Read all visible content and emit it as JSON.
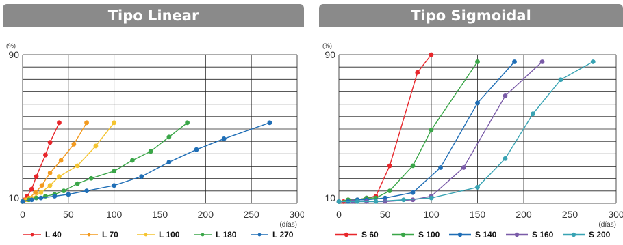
{
  "chart_data": [
    {
      "type": "line",
      "title": "Tipo Linear",
      "ylabel": "(%)",
      "xlabel": "(días)",
      "xlim": [
        0,
        300
      ],
      "ylim": [
        7,
        90
      ],
      "x_ticks": [
        "0",
        "50",
        "100",
        "150",
        "200",
        "250",
        "300"
      ],
      "y_ticks": [
        "10",
        "90"
      ],
      "grid": true,
      "legend_position": "bottom",
      "series": [
        {
          "name": "L 40",
          "color": "#e8262b",
          "x": [
            0,
            2,
            5,
            10,
            15,
            25,
            30,
            40
          ],
          "y": [
            8,
            9,
            11,
            15,
            22,
            34,
            41,
            52
          ]
        },
        {
          "name": "L 70",
          "color": "#f39a1e",
          "x": [
            0,
            3,
            7,
            14,
            21,
            30,
            42,
            56,
            70
          ],
          "y": [
            8,
            9,
            10,
            13,
            17,
            24,
            31,
            40,
            52
          ]
        },
        {
          "name": "L 100",
          "color": "#f4c430",
          "x": [
            0,
            5,
            10,
            20,
            30,
            40,
            60,
            80,
            100
          ],
          "y": [
            8,
            9,
            10,
            13,
            17,
            22,
            28,
            39,
            52
          ]
        },
        {
          "name": "L 180",
          "color": "#3aa648",
          "x": [
            0,
            7,
            15,
            25,
            35,
            45,
            60,
            75,
            100,
            120,
            140,
            160,
            180
          ],
          "y": [
            8,
            9,
            10,
            11,
            12,
            14,
            18,
            21,
            25,
            31,
            36,
            44,
            52
          ]
        },
        {
          "name": "L 270",
          "color": "#1f6eb6",
          "x": [
            0,
            10,
            20,
            35,
            50,
            70,
            100,
            130,
            160,
            190,
            220,
            270
          ],
          "y": [
            8,
            9,
            10,
            11,
            12,
            14,
            17,
            22,
            30,
            37,
            43,
            52
          ]
        }
      ]
    },
    {
      "type": "line",
      "title": "Tipo Sigmoidal",
      "ylabel": "(%)",
      "xlabel": "(días)",
      "xlim": [
        0,
        300
      ],
      "ylim": [
        7,
        90
      ],
      "x_ticks": [
        "0",
        "50",
        "100",
        "150",
        "200",
        "250",
        "300"
      ],
      "y_ticks": [
        "10",
        "90"
      ],
      "grid": true,
      "legend_position": "bottom",
      "series": [
        {
          "name": "S 60",
          "color": "#e8262b",
          "x": [
            0,
            5,
            10,
            20,
            30,
            40,
            55,
            85,
            100
          ],
          "y": [
            8,
            8,
            9,
            9,
            10,
            11,
            28,
            80,
            90
          ]
        },
        {
          "name": "S 100",
          "color": "#3aa648",
          "x": [
            0,
            10,
            20,
            30,
            40,
            55,
            80,
            100,
            150
          ],
          "y": [
            8,
            9,
            9,
            10,
            10,
            14,
            28,
            48,
            86
          ]
        },
        {
          "name": "S 140",
          "color": "#1f6eb6",
          "x": [
            0,
            10,
            20,
            30,
            50,
            80,
            110,
            150,
            190
          ],
          "y": [
            8,
            8,
            9,
            9,
            10,
            13,
            27,
            63,
            86
          ]
        },
        {
          "name": "S 160",
          "color": "#7a5ba8",
          "x": [
            0,
            15,
            30,
            50,
            80,
            100,
            135,
            180,
            220
          ],
          "y": [
            8,
            8,
            8,
            8,
            9,
            11,
            27,
            67,
            86
          ]
        },
        {
          "name": "S 200",
          "color": "#38a3b3",
          "x": [
            0,
            20,
            40,
            70,
            100,
            150,
            180,
            210,
            240,
            275
          ],
          "y": [
            8,
            8,
            8,
            9,
            10,
            16,
            32,
            57,
            76,
            86
          ]
        }
      ]
    }
  ]
}
